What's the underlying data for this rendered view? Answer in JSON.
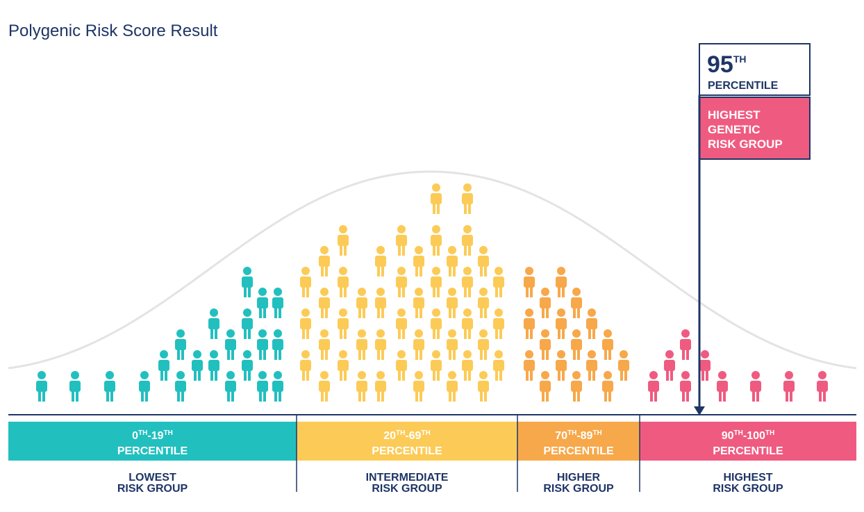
{
  "header": {
    "title": "Polygenic Risk Score Result"
  },
  "marker": {
    "value": "95",
    "sup": "TH",
    "unit": "PERCENTILE",
    "group": [
      "HIGHEST",
      "GENETIC",
      "RISK GROUP"
    ]
  },
  "segments": [
    {
      "range": [
        {
          "text": "0",
          "sup": "TH"
        },
        {
          "text": "-19",
          "sup": "TH"
        }
      ],
      "unit": "PERCENTILE",
      "group": [
        "LOWEST",
        "RISK GROUP"
      ]
    },
    {
      "range": [
        {
          "text": "20",
          "sup": "TH"
        },
        {
          "text": "-69",
          "sup": "TH"
        }
      ],
      "unit": "PERCENTILE",
      "group": [
        "INTERMEDIATE",
        "RISK GROUP"
      ]
    },
    {
      "range": [
        {
          "text": "70",
          "sup": "TH"
        },
        {
          "text": "-89",
          "sup": "TH"
        }
      ],
      "unit": "PERCENTILE",
      "group": [
        "HIGHER",
        "RISK GROUP"
      ]
    },
    {
      "range": [
        {
          "text": "90",
          "sup": "TH"
        },
        {
          "text": "-100",
          "sup": "TH"
        }
      ],
      "unit": "PERCENTILE",
      "group": [
        "HIGHEST",
        "RISK GROUP"
      ]
    }
  ]
}
